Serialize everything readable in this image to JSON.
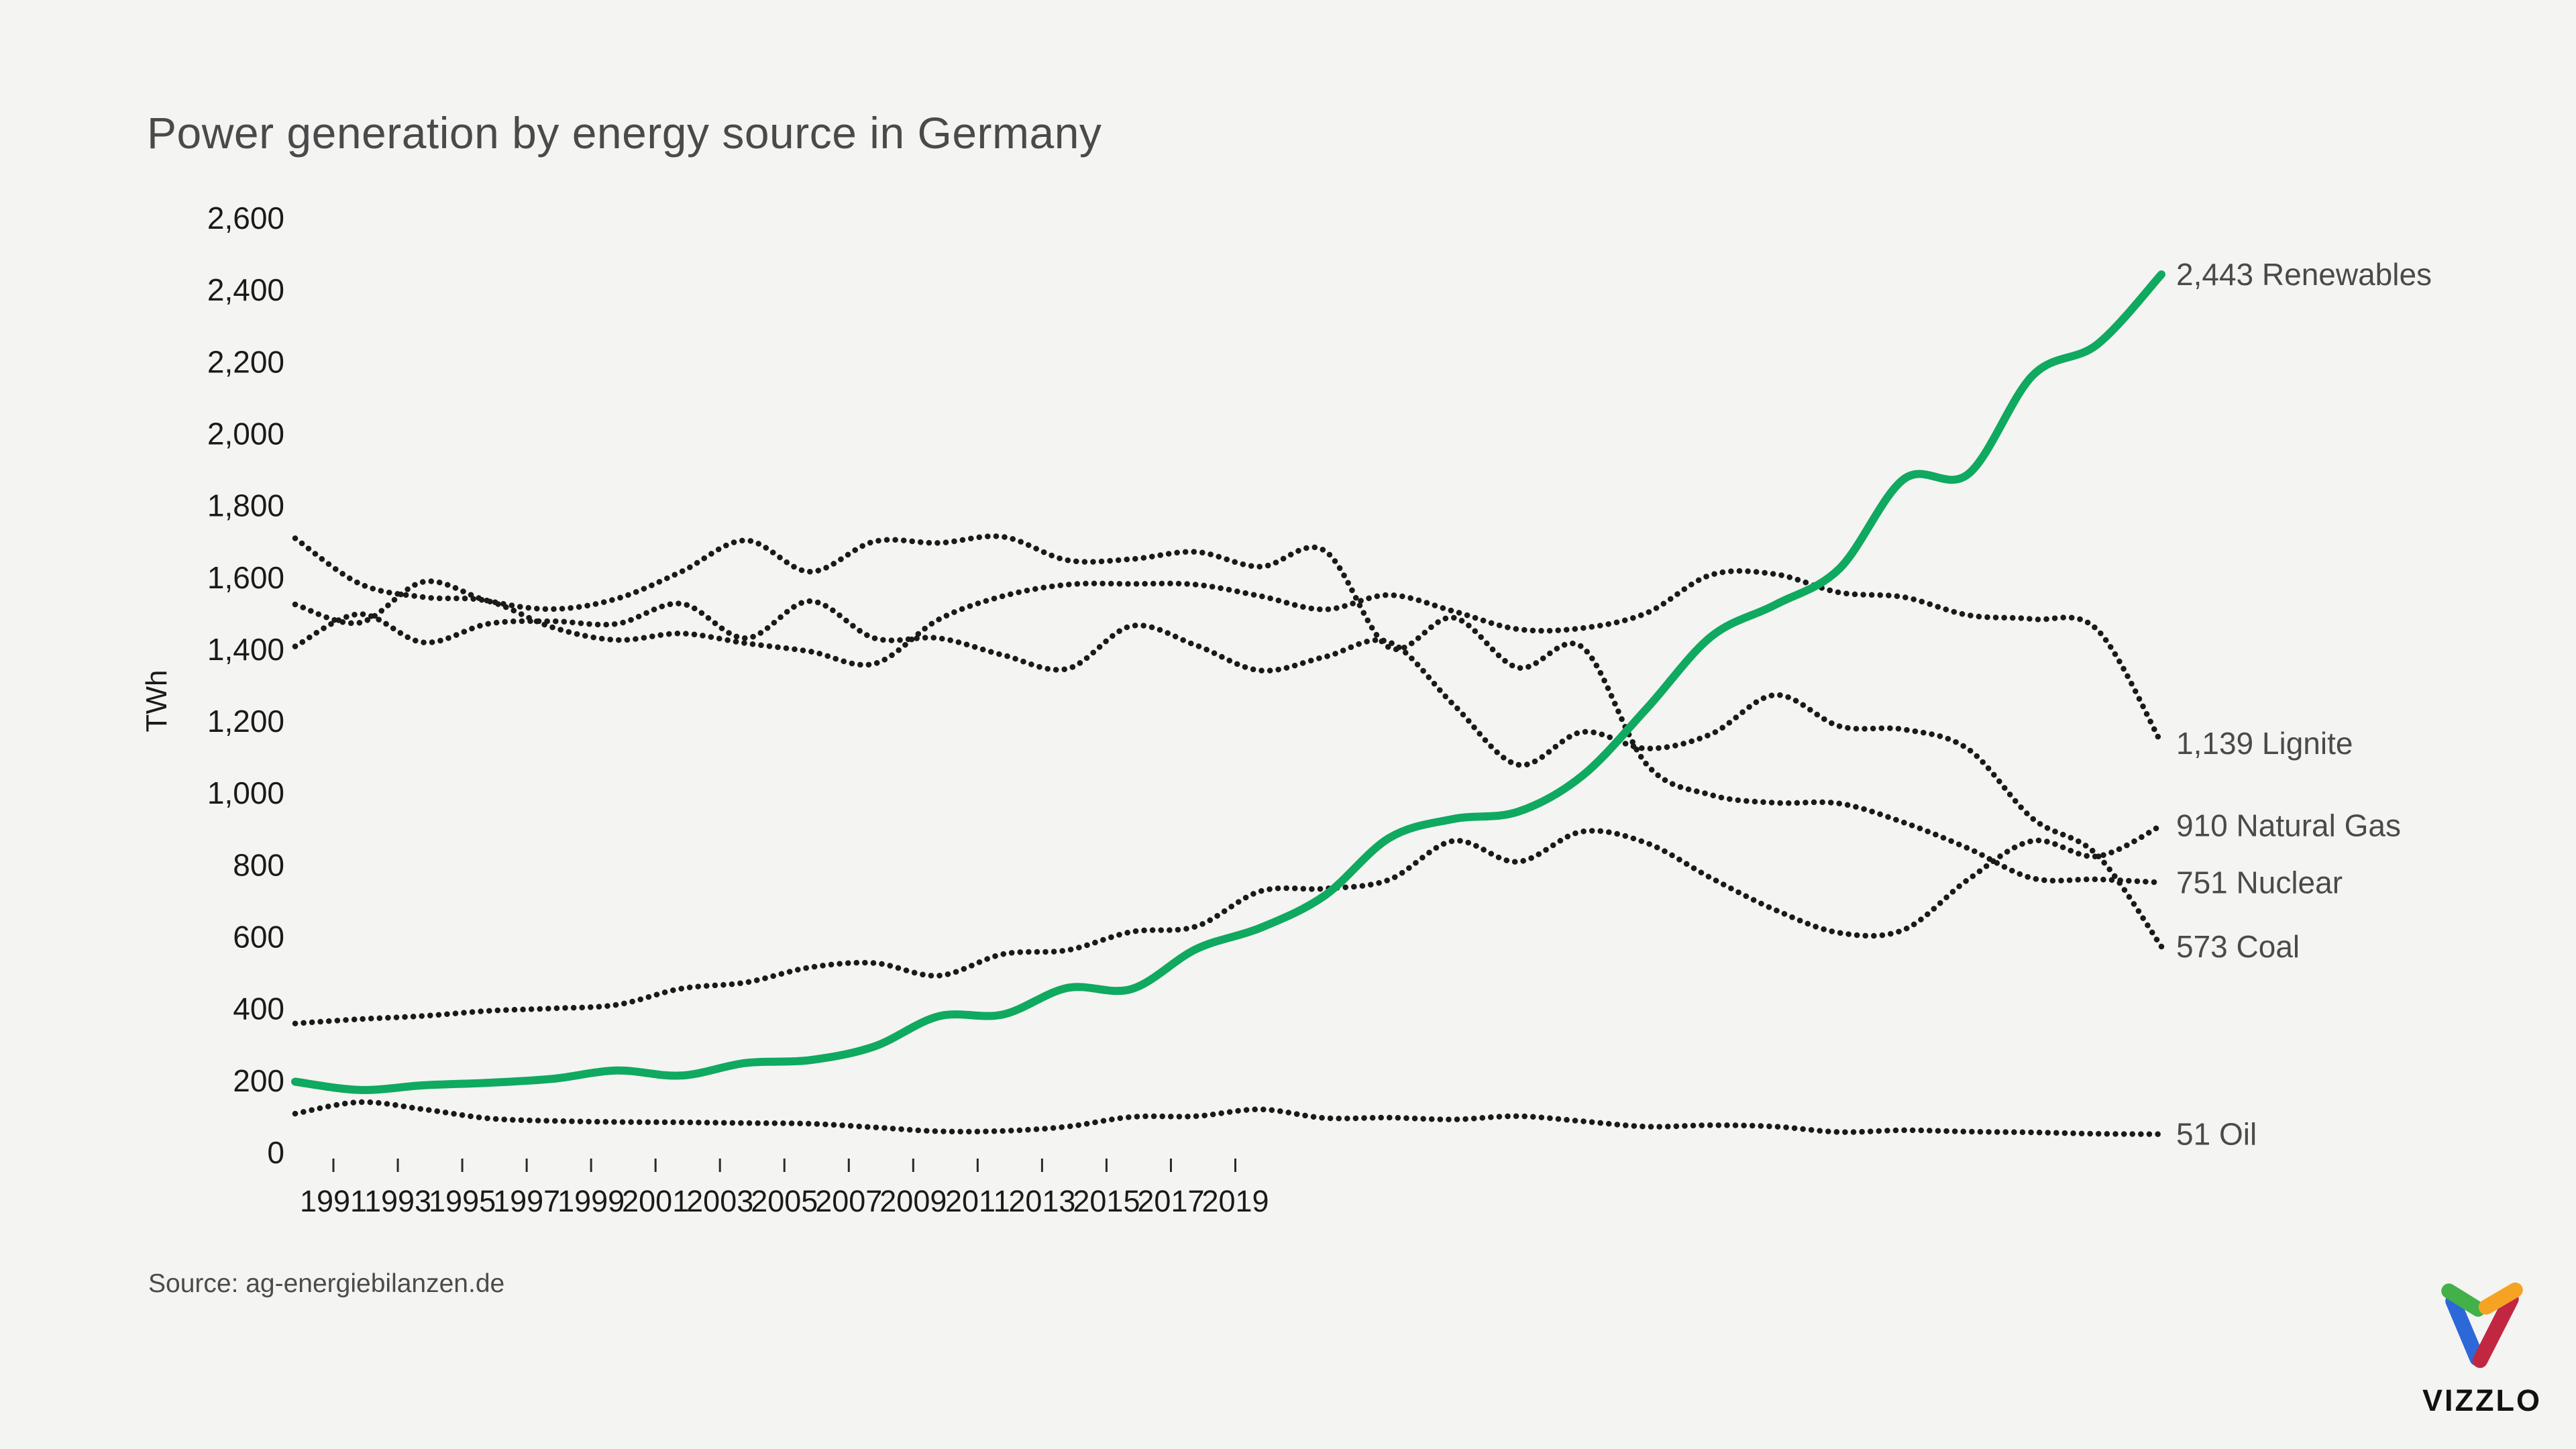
{
  "page": {
    "title": "Power generation by energy source in Germany",
    "source": "Source: ag-energiebilanzen.de",
    "background": "#f4f4f2"
  },
  "logo": {
    "text": "VIZZLO",
    "colors": {
      "green": "#43b049",
      "orange": "#f6a323",
      "blue": "#2d68d8",
      "red": "#c22742"
    }
  },
  "chart_data": {
    "type": "line",
    "title": "Power generation by energy source in Germany",
    "xlabel": "",
    "ylabel": "TWh",
    "grid": false,
    "legend_position": "end-of-line-labels",
    "xlim": [
      1990,
      2019
    ],
    "ylim": [
      0,
      2600
    ],
    "y_ticks": [
      0,
      200,
      400,
      600,
      800,
      1000,
      1200,
      1400,
      1600,
      1800,
      2000,
      2200,
      2400,
      2600
    ],
    "x_tick_labels": [
      "1991",
      "1993",
      "1995",
      "1997",
      "1999",
      "2001",
      "2003",
      "2005",
      "2007",
      "2009",
      "2011",
      "2013",
      "2015",
      "2017",
      "2019"
    ],
    "x": [
      1990,
      1991,
      1992,
      1993,
      1994,
      1995,
      1996,
      1997,
      1998,
      1999,
      2000,
      2001,
      2002,
      2003,
      2004,
      2005,
      2006,
      2007,
      2008,
      2009,
      2010,
      2011,
      2012,
      2013,
      2014,
      2015,
      2016,
      2017,
      2018,
      2019
    ],
    "series": [
      {
        "name": "Lignite",
        "style": "dotted",
        "color": "#1a1a1a",
        "end_label": "1,139 Lignite",
        "final_value": 1139,
        "values": [
          1709,
          1583,
          1545,
          1534,
          1461,
          1426,
          1444,
          1417,
          1394,
          1360,
          1483,
          1548,
          1580,
          1582,
          1580,
          1548,
          1511,
          1551,
          1506,
          1456,
          1459,
          1501,
          1607,
          1609,
          1558,
          1545,
          1495,
          1484,
          1455,
          1139
        ]
      },
      {
        "name": "Nuclear",
        "style": "dotted",
        "color": "#1a1a1a",
        "end_label": "751 Nuclear",
        "final_value": 751,
        "values": [
          1525,
          1474,
          1588,
          1535,
          1512,
          1541,
          1616,
          1703,
          1616,
          1700,
          1696,
          1713,
          1648,
          1651,
          1671,
          1630,
          1674,
          1405,
          1488,
          1349,
          1406,
          1080,
          995,
          973,
          971,
          918,
          846,
          763,
          760,
          751
        ]
      },
      {
        "name": "Coal",
        "style": "dotted",
        "color": "#1a1a1a",
        "end_label": "573 Coal",
        "final_value": 573,
        "values": [
          1408,
          1498,
          1419,
          1471,
          1478,
          1471,
          1527,
          1431,
          1534,
          1431,
          1431,
          1384,
          1346,
          1465,
          1411,
          1341,
          1379,
          1420,
          1246,
          1079,
          1170,
          1124,
          1164,
          1273,
          1186,
          1177,
          1122,
          929,
          828,
          573
        ]
      },
      {
        "name": "Natural Gas",
        "style": "dotted",
        "color": "#1a1a1a",
        "end_label": "910 Natural Gas",
        "final_value": 910,
        "values": [
          359,
          371,
          380,
          394,
          401,
          411,
          456,
          473,
          515,
          527,
          492,
          552,
          563,
          614,
          629,
          727,
          734,
          759,
          867,
          809,
          893,
          861,
          764,
          675,
          611,
          620,
          760,
          867,
          824,
          910
        ]
      },
      {
        "name": "Oil",
        "style": "dotted",
        "color": "#1a1a1a",
        "end_label": "51 Oil",
        "final_value": 51,
        "values": [
          108,
          140,
          120,
          95,
          88,
          85,
          84,
          82,
          80,
          70,
          59,
          60,
          72,
          99,
          101,
          120,
          96,
          97,
          92,
          101,
          87,
          72,
          76,
          72,
          57,
          62,
          58,
          56,
          52,
          51
        ]
      },
      {
        "name": "Renewables",
        "style": "solid",
        "color": "#0fa95f",
        "end_label": "2,443 Renewables",
        "final_value": 2443,
        "values": [
          197,
          174,
          187,
          194,
          205,
          228,
          214,
          249,
          257,
          295,
          379,
          384,
          458,
          455,
          566,
          625,
          715,
          875,
          928,
          948,
          1048,
          1235,
          1435,
          1524,
          1625,
          1874,
          1888,
          2162,
          2248,
          2443
        ]
      }
    ]
  }
}
